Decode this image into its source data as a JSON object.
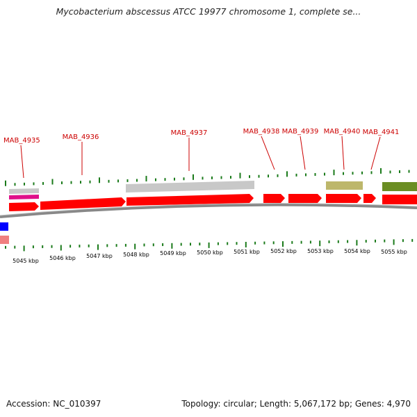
{
  "map": {
    "title": "Mycobacterium abscessus ATCC 19977 chromosome 1, complete se..."
  },
  "locus_tags": [
    {
      "tag": "MAB_4935"
    },
    {
      "tag": "MAB_4936"
    },
    {
      "tag": "MAB_4937"
    },
    {
      "tag": "MAB_4938"
    },
    {
      "tag": "MAB_4939"
    },
    {
      "tag": "MAB_4940"
    },
    {
      "tag": "MAB_4941"
    }
  ],
  "scale_labels": [
    "5045 kbp",
    "5046 kbp",
    "5047 kbp",
    "5048 kbp",
    "5049 kbp",
    "5050 kbp",
    "5051 kbp",
    "5052 kbp",
    "5053 kbp",
    "5054 kbp",
    "5055 kbp"
  ],
  "colors": {
    "cds": "#ff0000",
    "tag_text": "#cc0000",
    "tick": "#1a7a1a",
    "backbone": "#888888",
    "feature_grey": "#c8c8c8",
    "feature_khaki": "#bdb76b",
    "feature_olive": "#6b8e23",
    "feature_magenta": "#e0108a",
    "feature_blue": "#0000ff",
    "feature_pink": "#f08080"
  },
  "footer": {
    "accession": "Accession: NC_010397",
    "topology": "Topology: circular; Length: 5,067,172 bp; Genes: 4,970"
  }
}
